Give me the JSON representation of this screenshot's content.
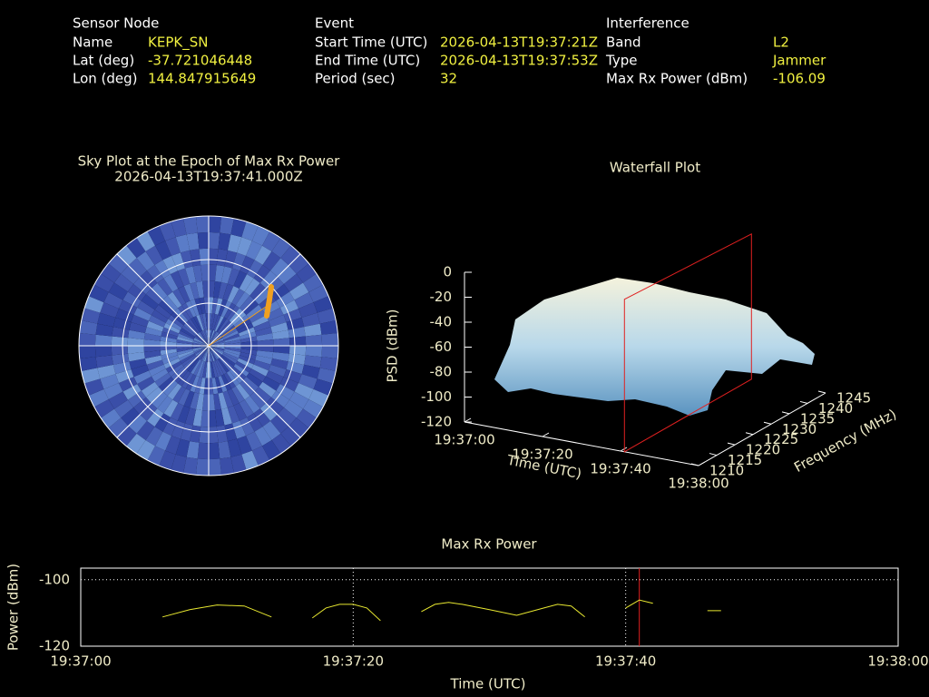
{
  "header": {
    "sensor_node": {
      "title": "Sensor Node",
      "rows": [
        [
          "Name",
          "KEPK_SN"
        ],
        [
          "Lat (deg)",
          "-37.721046448"
        ],
        [
          "Lon (deg)",
          "144.847915649"
        ]
      ]
    },
    "event": {
      "title": "Event",
      "rows": [
        [
          "Start Time (UTC)",
          "2026-04-13T19:37:21Z"
        ],
        [
          "End Time (UTC)",
          "2026-04-13T19:37:53Z"
        ],
        [
          "Period (sec)",
          "32"
        ]
      ]
    },
    "interference": {
      "title": "Interference",
      "rows": [
        [
          "Band",
          "L2"
        ],
        [
          "Type",
          "Jammer"
        ],
        [
          "Max Rx Power (dBm)",
          "-106.09"
        ]
      ]
    }
  },
  "chart_data": [
    {
      "type": "polar",
      "title": "Sky Plot at the Epoch of Max Rx Power",
      "subtitle": "2026-04-13T19:37:41.000Z"
    },
    {
      "type": "surface",
      "title": "Waterfall Plot",
      "zlabel": "PSD (dBm)",
      "xlabel": "Time (UTC)",
      "ylabel": "Frequency (MHz)",
      "zlim": [
        -120,
        0
      ],
      "zticks": [
        -120,
        -100,
        -80,
        -60,
        -40,
        -20,
        0
      ],
      "xlim": [
        0,
        60
      ],
      "xticks": [
        {
          "value": 0,
          "label": "19:37:00"
        },
        {
          "value": 20,
          "label": "19:37:20"
        },
        {
          "value": 40,
          "label": "19:37:40"
        },
        {
          "value": 60,
          "label": "19:38:00"
        }
      ],
      "ylim": [
        1210,
        1245
      ],
      "yticks": [
        1210,
        1215,
        1220,
        1225,
        1230,
        1235,
        1240,
        1245
      ],
      "marker_x": 41,
      "marker_color": "#e02020"
    },
    {
      "type": "line",
      "title": "Max Rx Power",
      "xlabel": "Time (UTC)",
      "ylabel": "Power (dBm)",
      "color": "#e8e830",
      "xlim": [
        0,
        60
      ],
      "xticks": [
        {
          "value": 0,
          "label": "19:37:00"
        },
        {
          "value": 20,
          "label": "19:37:20"
        },
        {
          "value": 40,
          "label": "19:37:40"
        },
        {
          "value": 60,
          "label": "19:38:00"
        }
      ],
      "ylim": [
        -120,
        -96.5
      ],
      "yticks": [
        -120,
        -100
      ],
      "grid": true,
      "marker_x": 41,
      "marker_color": "#e02020",
      "x": [
        6,
        8,
        10,
        12,
        14,
        null,
        17,
        18,
        19,
        20,
        21,
        22,
        null,
        25,
        26,
        27,
        28,
        30,
        32,
        34,
        35,
        36,
        37,
        null,
        40,
        41,
        42,
        null,
        46,
        47
      ],
      "values": [
        -111.2,
        -109,
        -107.6,
        -107.9,
        -111.2,
        null,
        -111.5,
        -108.5,
        -107.4,
        -107.4,
        -108.5,
        -112.3,
        null,
        -109.6,
        -107.4,
        -106.8,
        -107.4,
        -109,
        -110.7,
        -108.5,
        -107.4,
        -107.9,
        -111.2,
        null,
        -108.5,
        -106.1,
        -107.1,
        null,
        -109.3,
        -109.3
      ]
    }
  ]
}
